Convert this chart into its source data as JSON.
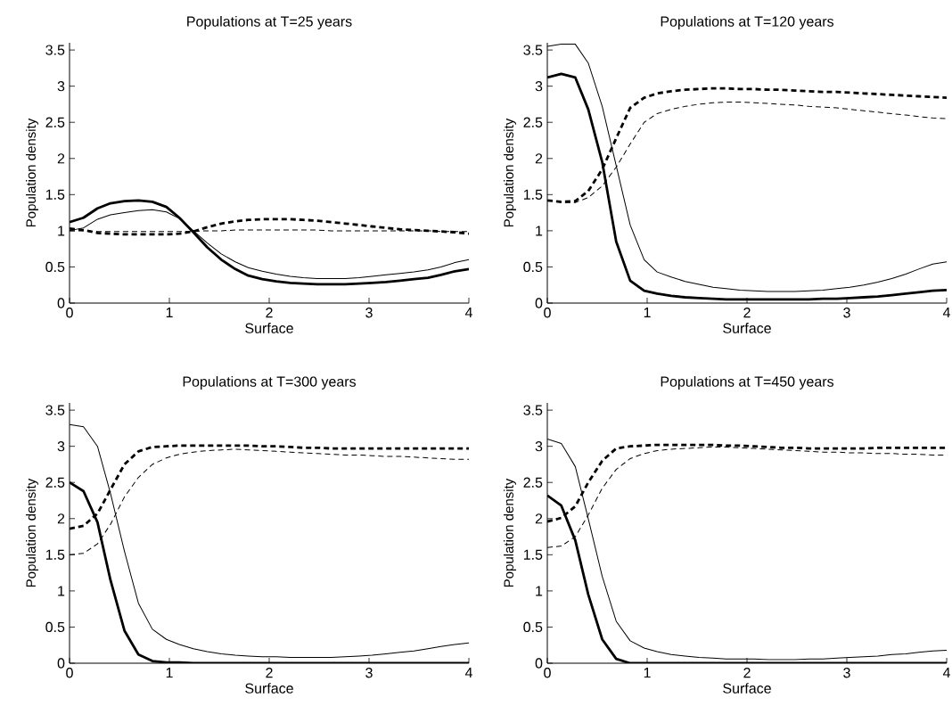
{
  "chart_data": [
    {
      "type": "line",
      "title": "Populations at T=25 years",
      "xlabel": "Surface",
      "ylabel": "Population density",
      "xlim": [
        0,
        4
      ],
      "ylim": [
        0,
        3.6
      ],
      "xticks": [
        0,
        1,
        2,
        3,
        4
      ],
      "yticks": [
        0,
        0.5,
        1,
        1.5,
        2,
        2.5,
        3,
        3.5
      ],
      "grid": false,
      "x": [
        0,
        0.14,
        0.28,
        0.41,
        0.55,
        0.69,
        0.83,
        0.97,
        1.1,
        1.24,
        1.38,
        1.52,
        1.66,
        1.79,
        1.93,
        2.07,
        2.21,
        2.34,
        2.48,
        2.62,
        2.76,
        2.9,
        3.03,
        3.17,
        3.31,
        3.45,
        3.59,
        3.72,
        3.86,
        4
      ],
      "series": [
        {
          "color": "#000000",
          "line_style": "solid",
          "values": [
            1.12,
            1.18,
            1.31,
            1.38,
            1.41,
            1.42,
            1.4,
            1.33,
            1.18,
            0.98,
            0.77,
            0.6,
            0.47,
            0.38,
            0.33,
            0.3,
            0.28,
            0.27,
            0.26,
            0.26,
            0.26,
            0.27,
            0.28,
            0.29,
            0.31,
            0.33,
            0.35,
            0.39,
            0.44,
            0.47
          ]
        },
        {
          "color": "#000000",
          "line_style": "solid",
          "values": [
            1.0,
            1.04,
            1.16,
            1.22,
            1.25,
            1.28,
            1.29,
            1.26,
            1.17,
            1.0,
            0.83,
            0.68,
            0.57,
            0.49,
            0.44,
            0.4,
            0.37,
            0.35,
            0.34,
            0.34,
            0.34,
            0.35,
            0.37,
            0.39,
            0.41,
            0.43,
            0.46,
            0.5,
            0.56,
            0.6
          ]
        },
        {
          "color": "#000000",
          "line_style": "dashed",
          "values": [
            1.03,
            1.01,
            0.97,
            0.96,
            0.95,
            0.95,
            0.95,
            0.95,
            0.96,
            0.99,
            1.05,
            1.1,
            1.13,
            1.15,
            1.16,
            1.16,
            1.16,
            1.15,
            1.14,
            1.12,
            1.1,
            1.08,
            1.06,
            1.04,
            1.02,
            1.01,
            1.0,
            0.99,
            0.98,
            0.96
          ]
        },
        {
          "color": "#000000",
          "line_style": "dashed",
          "values": [
            1.0,
            1.0,
            0.99,
            0.99,
            0.99,
            0.99,
            0.99,
            0.99,
            0.99,
            0.99,
            1.0,
            1.0,
            1.01,
            1.01,
            1.01,
            1.01,
            1.01,
            1.01,
            1.01,
            1.0,
            1.0,
            1.0,
            1.0,
            1.0,
            1.0,
            1.0,
            1.0,
            0.99,
            0.99,
            0.99
          ]
        }
      ]
    },
    {
      "type": "line",
      "title": "Populations at T=120 years",
      "xlabel": "Surface",
      "ylabel": "Population density",
      "xlim": [
        0,
        4
      ],
      "ylim": [
        0,
        3.6
      ],
      "xticks": [
        0,
        1,
        2,
        3,
        4
      ],
      "yticks": [
        0,
        0.5,
        1,
        1.5,
        2,
        2.5,
        3,
        3.5
      ],
      "grid": false,
      "x": [
        0,
        0.14,
        0.28,
        0.41,
        0.55,
        0.69,
        0.83,
        0.97,
        1.1,
        1.24,
        1.38,
        1.52,
        1.66,
        1.79,
        1.93,
        2.07,
        2.21,
        2.34,
        2.48,
        2.62,
        2.76,
        2.9,
        3.03,
        3.17,
        3.31,
        3.45,
        3.59,
        3.72,
        3.86,
        4
      ],
      "series": [
        {
          "color": "#000000",
          "line_style": "solid",
          "values": [
            3.12,
            3.17,
            3.12,
            2.68,
            1.95,
            0.85,
            0.31,
            0.17,
            0.13,
            0.1,
            0.08,
            0.07,
            0.06,
            0.05,
            0.05,
            0.05,
            0.05,
            0.05,
            0.05,
            0.05,
            0.06,
            0.06,
            0.07,
            0.08,
            0.09,
            0.11,
            0.13,
            0.15,
            0.17,
            0.18
          ]
        },
        {
          "color": "#000000",
          "line_style": "solid",
          "values": [
            3.55,
            3.58,
            3.58,
            3.32,
            2.72,
            1.9,
            1.08,
            0.6,
            0.43,
            0.36,
            0.3,
            0.26,
            0.22,
            0.2,
            0.18,
            0.17,
            0.16,
            0.16,
            0.16,
            0.17,
            0.18,
            0.2,
            0.22,
            0.25,
            0.29,
            0.34,
            0.4,
            0.47,
            0.54,
            0.57
          ]
        },
        {
          "color": "#000000",
          "line_style": "dashed",
          "values": [
            1.42,
            1.4,
            1.41,
            1.55,
            1.85,
            2.28,
            2.7,
            2.84,
            2.9,
            2.93,
            2.95,
            2.96,
            2.97,
            2.97,
            2.96,
            2.96,
            2.95,
            2.95,
            2.94,
            2.93,
            2.92,
            2.92,
            2.91,
            2.9,
            2.89,
            2.88,
            2.87,
            2.86,
            2.85,
            2.84
          ]
        },
        {
          "color": "#000000",
          "line_style": "dashed",
          "values": [
            1.42,
            1.39,
            1.39,
            1.46,
            1.62,
            1.88,
            2.2,
            2.5,
            2.62,
            2.68,
            2.72,
            2.75,
            2.77,
            2.78,
            2.78,
            2.77,
            2.76,
            2.75,
            2.74,
            2.72,
            2.71,
            2.7,
            2.68,
            2.66,
            2.64,
            2.62,
            2.6,
            2.58,
            2.56,
            2.55
          ]
        }
      ]
    },
    {
      "type": "line",
      "title": "Populations at T=300 years",
      "xlabel": "Surface",
      "ylabel": "Population density",
      "xlim": [
        0,
        4
      ],
      "ylim": [
        0,
        3.6
      ],
      "xticks": [
        0,
        1,
        2,
        3,
        4
      ],
      "yticks": [
        0,
        0.5,
        1,
        1.5,
        2,
        2.5,
        3,
        3.5
      ],
      "grid": false,
      "x": [
        0,
        0.14,
        0.28,
        0.41,
        0.55,
        0.69,
        0.83,
        0.97,
        1.1,
        1.24,
        1.38,
        1.52,
        1.66,
        1.79,
        1.93,
        2.07,
        2.21,
        2.34,
        2.48,
        2.62,
        2.76,
        2.9,
        3.03,
        3.17,
        3.31,
        3.45,
        3.59,
        3.72,
        3.86,
        4
      ],
      "series": [
        {
          "color": "#000000",
          "line_style": "solid",
          "values": [
            2.5,
            2.38,
            1.95,
            1.15,
            0.45,
            0.12,
            0.03,
            0.01,
            0.01,
            0,
            0,
            0,
            0,
            0,
            0,
            0,
            0,
            0,
            0,
            0,
            0,
            0,
            0,
            0,
            0,
            0,
            0,
            0,
            0,
            0
          ]
        },
        {
          "color": "#000000",
          "line_style": "solid",
          "values": [
            3.3,
            3.27,
            3.0,
            2.35,
            1.55,
            0.83,
            0.47,
            0.33,
            0.26,
            0.2,
            0.16,
            0.13,
            0.11,
            0.1,
            0.09,
            0.09,
            0.08,
            0.08,
            0.08,
            0.08,
            0.09,
            0.1,
            0.11,
            0.13,
            0.15,
            0.17,
            0.2,
            0.23,
            0.26,
            0.28
          ]
        },
        {
          "color": "#000000",
          "line_style": "dashed",
          "values": [
            1.86,
            1.9,
            2.07,
            2.4,
            2.75,
            2.93,
            2.99,
            3.0,
            3.01,
            3.01,
            3.01,
            3.01,
            3.01,
            3.01,
            3.0,
            3.0,
            2.99,
            2.98,
            2.98,
            2.97,
            2.97,
            2.97,
            2.97,
            2.97,
            2.97,
            2.97,
            2.97,
            2.97,
            2.97,
            2.97
          ]
        },
        {
          "color": "#000000",
          "line_style": "dashed",
          "values": [
            1.5,
            1.52,
            1.65,
            1.92,
            2.3,
            2.57,
            2.75,
            2.84,
            2.89,
            2.92,
            2.94,
            2.95,
            2.96,
            2.95,
            2.94,
            2.93,
            2.92,
            2.91,
            2.9,
            2.89,
            2.88,
            2.88,
            2.87,
            2.86,
            2.86,
            2.85,
            2.84,
            2.83,
            2.82,
            2.82
          ]
        }
      ]
    },
    {
      "type": "line",
      "title": "Populations at T=450 years",
      "xlabel": "Surface",
      "ylabel": "Population density",
      "xlim": [
        0,
        4
      ],
      "ylim": [
        0,
        3.6
      ],
      "xticks": [
        0,
        1,
        2,
        3,
        4
      ],
      "yticks": [
        0,
        0.5,
        1,
        1.5,
        2,
        2.5,
        3,
        3.5
      ],
      "grid": false,
      "x": [
        0,
        0.14,
        0.28,
        0.41,
        0.55,
        0.69,
        0.83,
        0.97,
        1.1,
        1.24,
        1.38,
        1.52,
        1.66,
        1.79,
        1.93,
        2.07,
        2.21,
        2.34,
        2.48,
        2.62,
        2.76,
        2.9,
        3.03,
        3.17,
        3.31,
        3.45,
        3.59,
        3.72,
        3.86,
        4
      ],
      "series": [
        {
          "color": "#000000",
          "line_style": "solid",
          "values": [
            2.32,
            2.18,
            1.7,
            0.95,
            0.33,
            0.06,
            0,
            0,
            0,
            0,
            0,
            0,
            0,
            0,
            0,
            0,
            0,
            0,
            0,
            0,
            0,
            0,
            0,
            0,
            0,
            0,
            0,
            0,
            0,
            0
          ]
        },
        {
          "color": "#000000",
          "line_style": "solid",
          "values": [
            3.1,
            3.04,
            2.72,
            2.0,
            1.2,
            0.58,
            0.31,
            0.21,
            0.16,
            0.12,
            0.1,
            0.08,
            0.07,
            0.06,
            0.06,
            0.06,
            0.05,
            0.05,
            0.05,
            0.06,
            0.06,
            0.07,
            0.08,
            0.09,
            0.1,
            0.12,
            0.13,
            0.15,
            0.17,
            0.18
          ]
        },
        {
          "color": "#000000",
          "line_style": "dashed",
          "values": [
            1.96,
            2.01,
            2.17,
            2.5,
            2.8,
            2.97,
            3.0,
            3.01,
            3.02,
            3.02,
            3.02,
            3.02,
            3.02,
            3.01,
            3.01,
            3.0,
            2.99,
            2.98,
            2.98,
            2.97,
            2.97,
            2.97,
            2.97,
            2.97,
            2.98,
            2.98,
            2.98,
            2.98,
            2.98,
            2.98
          ]
        },
        {
          "color": "#000000",
          "line_style": "dashed",
          "values": [
            1.6,
            1.62,
            1.75,
            2.05,
            2.42,
            2.68,
            2.83,
            2.9,
            2.94,
            2.96,
            2.97,
            2.98,
            2.99,
            2.99,
            2.98,
            2.97,
            2.96,
            2.95,
            2.94,
            2.93,
            2.92,
            2.92,
            2.91,
            2.91,
            2.9,
            2.9,
            2.89,
            2.89,
            2.88,
            2.88
          ]
        }
      ]
    }
  ]
}
